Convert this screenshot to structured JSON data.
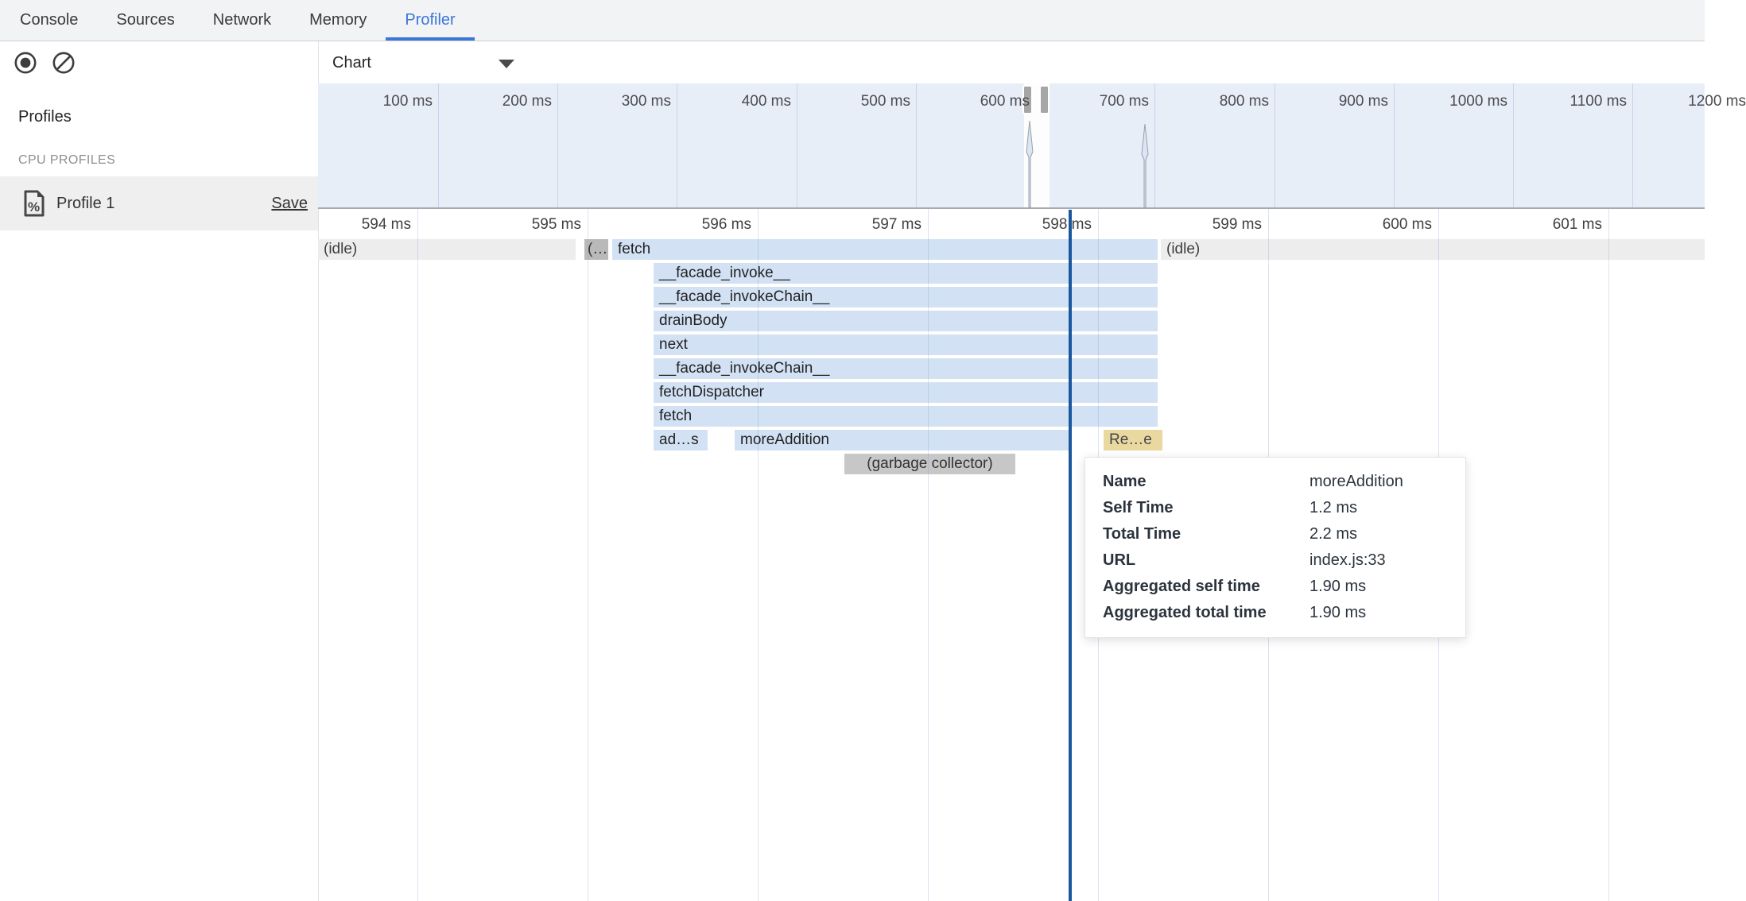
{
  "tabs": {
    "items": [
      {
        "label": "Console",
        "active": false
      },
      {
        "label": "Sources",
        "active": false
      },
      {
        "label": "Network",
        "active": false
      },
      {
        "label": "Memory",
        "active": false
      },
      {
        "label": "Profiler",
        "active": true
      }
    ]
  },
  "toolbar": {
    "record_icon": "record-icon",
    "clear_icon": "clear-icon",
    "view_mode": "Chart"
  },
  "sidebar": {
    "title": "Profiles",
    "section_header": "CPU PROFILES",
    "profile": {
      "name": "Profile 1",
      "save_label": "Save"
    }
  },
  "overview": {
    "tick_labels": [
      "100 ms",
      "200 ms",
      "300 ms",
      "400 ms",
      "500 ms",
      "600 ms",
      "700 ms",
      "800 ms",
      "900 ms",
      "1000 ms",
      "1100 ms",
      "1200 ms"
    ]
  },
  "detail_ruler": {
    "tick_labels": [
      "594 ms",
      "595 ms",
      "596 ms",
      "597 ms",
      "598 ms",
      "599 ms",
      "600 ms",
      "601 ms"
    ]
  },
  "flame": {
    "rows": [
      {
        "blocks": [
          {
            "label": "(idle)",
            "kind": "idle"
          },
          {
            "label": "(…",
            "kind": "trunc"
          },
          {
            "label": "fetch",
            "kind": "js"
          },
          {
            "label": "(idle)",
            "kind": "idle"
          }
        ]
      },
      {
        "blocks": [
          {
            "label": "__facade_invoke__",
            "kind": "js"
          }
        ]
      },
      {
        "blocks": [
          {
            "label": "__facade_invokeChain__",
            "kind": "js"
          }
        ]
      },
      {
        "blocks": [
          {
            "label": "drainBody",
            "kind": "js"
          }
        ]
      },
      {
        "blocks": [
          {
            "label": "next",
            "kind": "js"
          }
        ]
      },
      {
        "blocks": [
          {
            "label": "__facade_invokeChain__",
            "kind": "js"
          }
        ]
      },
      {
        "blocks": [
          {
            "label": "fetchDispatcher",
            "kind": "js"
          }
        ]
      },
      {
        "blocks": [
          {
            "label": "fetch",
            "kind": "js"
          }
        ]
      },
      {
        "blocks": [
          {
            "label": "ad…s",
            "kind": "js"
          },
          {
            "label": "moreAddition",
            "kind": "js"
          },
          {
            "label": "Re…e",
            "kind": "record"
          }
        ]
      },
      {
        "blocks": [
          {
            "label": "(garbage collector)",
            "kind": "gc"
          }
        ]
      }
    ]
  },
  "tooltip": {
    "rows": [
      {
        "label": "Name",
        "value": "moreAddition"
      },
      {
        "label": "Self Time",
        "value": "1.2 ms"
      },
      {
        "label": "Total Time",
        "value": "2.2 ms"
      },
      {
        "label": "URL",
        "value": "index.js:33"
      },
      {
        "label": "Aggregated self time",
        "value": "1.90 ms"
      },
      {
        "label": "Aggregated total time",
        "value": "1.90 ms"
      }
    ]
  },
  "colors": {
    "accent_blue": "#3b76d9",
    "scrubber_blue": "#1a579f",
    "flame_block_blue": "#d2e2f4",
    "record_block_tan": "#e9d9a1",
    "idle_gray": "#ededee",
    "gc_gray": "#c7c7c7",
    "overview_bg": "#e8eef8"
  }
}
